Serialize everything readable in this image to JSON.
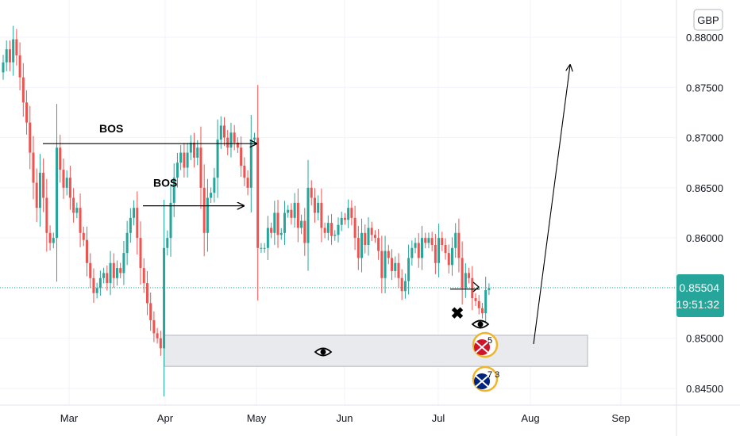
{
  "currency_label": "GBP",
  "last_price_label": "0.85504",
  "countdown_label": "19:51:32",
  "colors": {
    "up": "#26a69a",
    "down": "#ef5350",
    "price_line": "#26a69a",
    "zone_fill": "#e8eaee",
    "zone_stroke": "#b2b5be"
  },
  "annotations": {
    "bos_1": "BOS",
    "bos_2": "BOS",
    "x_mark": "✖",
    "badge_1": "5",
    "badge_2": "7 3"
  },
  "icons": [
    "eye-icon",
    "uk-flag-icon",
    "australia-flag-icon",
    "arrow-right-icon",
    "arrow-up-right-icon",
    "cross-mark-icon"
  ],
  "chart_data": {
    "type": "candlestick",
    "title": "",
    "xlabel": "",
    "ylabel": "",
    "ylim": [
      0.8435,
      0.881
    ],
    "y_ticks": [
      "0.84500",
      "0.85000",
      "0.85500",
      "0.86000",
      "0.86500",
      "0.87000",
      "0.87500",
      "0.88000"
    ],
    "x_ticks": [
      "Mar",
      "Apr",
      "May",
      "Jun",
      "Jul",
      "Aug",
      "Sep"
    ],
    "grid": true,
    "last_price": 0.85504,
    "zone": {
      "low": 0.8472,
      "high": 0.8503
    },
    "bos_levels": [
      0.8694,
      0.8632
    ],
    "closes": [
      0.8775,
      0.8788,
      0.8775,
      0.8798,
      0.8782,
      0.876,
      0.8735,
      0.8715,
      0.8685,
      0.8655,
      0.863,
      0.8665,
      0.864,
      0.8605,
      0.8595,
      0.86,
      0.869,
      0.8668,
      0.865,
      0.866,
      0.864,
      0.8625,
      0.863,
      0.8605,
      0.8598,
      0.8575,
      0.856,
      0.8545,
      0.855,
      0.856,
      0.8565,
      0.8555,
      0.8575,
      0.856,
      0.857,
      0.8565,
      0.8585,
      0.8605,
      0.862,
      0.863,
      0.86,
      0.857,
      0.8555,
      0.8535,
      0.8518,
      0.8505,
      0.85,
      0.849,
      0.859,
      0.86,
      0.8635,
      0.866,
      0.8675,
      0.8685,
      0.867,
      0.8685,
      0.8695,
      0.868,
      0.869,
      0.865,
      0.8605,
      0.864,
      0.8645,
      0.866,
      0.8698,
      0.8712,
      0.87,
      0.869,
      0.8705,
      0.8695,
      0.869,
      0.8672,
      0.866,
      0.865,
      0.8698,
      0.87,
      0.859,
      0.859,
      0.859,
      0.861,
      0.8605,
      0.8625,
      0.8603,
      0.8605,
      0.8625,
      0.8628,
      0.862,
      0.8635,
      0.861,
      0.8617,
      0.8595,
      0.865,
      0.864,
      0.8625,
      0.8635,
      0.861,
      0.8605,
      0.8615,
      0.8602,
      0.8603,
      0.8613,
      0.862,
      0.8618,
      0.863,
      0.862,
      0.86,
      0.858,
      0.8605,
      0.8593,
      0.861,
      0.8603,
      0.86,
      0.8587,
      0.856,
      0.8587,
      0.858,
      0.8567,
      0.8575,
      0.856,
      0.8547,
      0.8557,
      0.858,
      0.859,
      0.8595,
      0.858,
      0.86,
      0.8595,
      0.86,
      0.8593,
      0.8575,
      0.86,
      0.8593,
      0.8585,
      0.8573,
      0.859,
      0.8605,
      0.858,
      0.855,
      0.8565,
      0.856,
      0.854,
      0.8537,
      0.853,
      0.8525,
      0.8548,
      0.855
    ]
  }
}
